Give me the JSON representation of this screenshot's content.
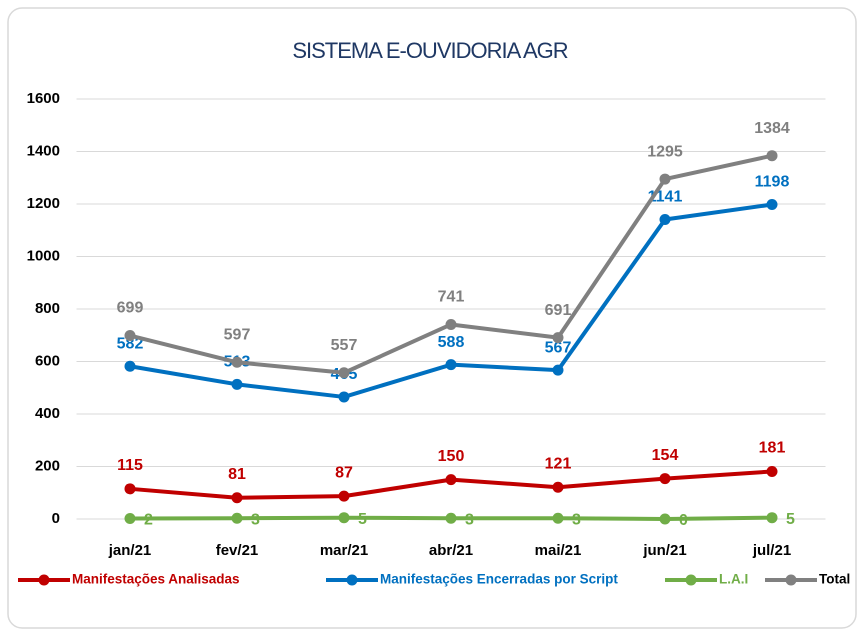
{
  "chart_data": {
    "type": "line",
    "title": "SISTEMA E-OUVIDORIA AGR",
    "categories": [
      "jan/21",
      "fev/21",
      "mar/21",
      "abr/21",
      "mai/21",
      "jun/21",
      "jul/21"
    ],
    "series": [
      {
        "name": "Manifestações Analisadas",
        "color": "#c00000",
        "values": [
          115,
          81,
          87,
          150,
          121,
          154,
          181
        ]
      },
      {
        "name": "Manifestações Encerradas por Script",
        "color": "#0070c0",
        "values": [
          582,
          513,
          465,
          588,
          567,
          1141,
          1198
        ]
      },
      {
        "name": "L.A.I",
        "color": "#70ad47",
        "values": [
          2,
          3,
          5,
          3,
          3,
          0,
          5
        ]
      },
      {
        "name": "Total",
        "color": "#808080",
        "values": [
          699,
          597,
          557,
          741,
          691,
          1295,
          1384
        ]
      }
    ],
    "ylim": [
      0,
      1600
    ],
    "yticks": [
      0,
      200,
      400,
      600,
      800,
      1000,
      1200,
      1400,
      1600
    ],
    "grid": true
  }
}
